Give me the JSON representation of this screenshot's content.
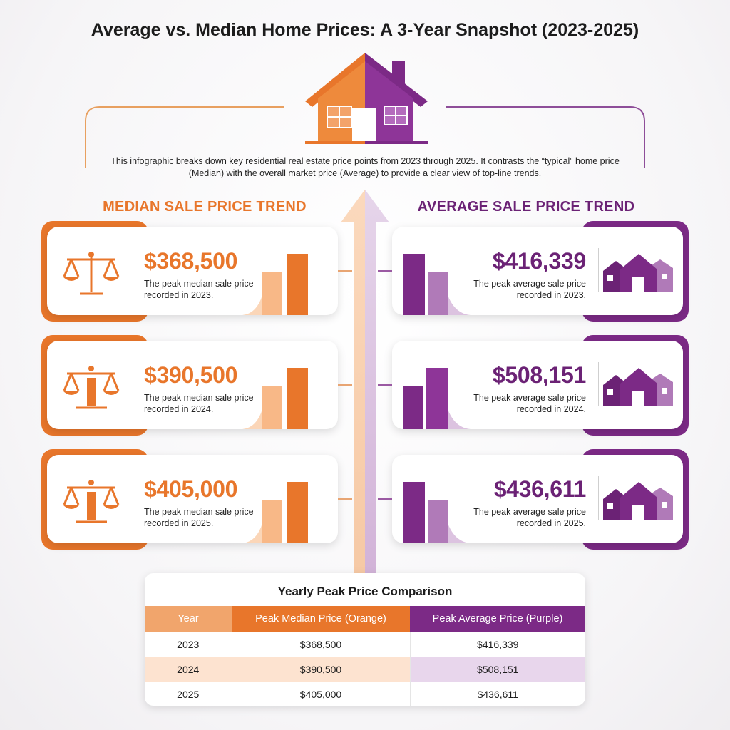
{
  "title": "Average vs. Median Home Prices: A 3-Year Snapshot (2023-2025)",
  "intro": "This infographic breaks down key residential real estate price points from 2023 through 2025. It contrasts the “typical” home price (Median) with the overall market price (Average) to provide a clear view of top-line trends.",
  "colors": {
    "median": "#e8762b",
    "average": "#7c2a86"
  },
  "median_section": {
    "title": "MEDIAN SALE PRICE TREND",
    "icon": "scales-icon",
    "cards": [
      {
        "year": "2023",
        "price": "$368,500",
        "desc": "The peak median sale price recorded in 2023."
      },
      {
        "year": "2024",
        "price": "$390,500",
        "desc": "The peak median sale price recorded in 2024."
      },
      {
        "year": "2025",
        "price": "$405,000",
        "desc": "The peak median sale price recorded in 2025."
      }
    ]
  },
  "average_section": {
    "title": "AVERAGE SALE PRICE TREND",
    "icon": "houses-icon",
    "cards": [
      {
        "year": "2023",
        "price": "$416,339",
        "desc": "The peak average sale price recorded in 2023."
      },
      {
        "year": "2024",
        "price": "$508,151",
        "desc": "The peak average sale price recorded in 2024."
      },
      {
        "year": "2025",
        "price": "$436,611",
        "desc": "The peak average sale price recorded in 2025."
      }
    ]
  },
  "table": {
    "title": "Yearly Peak Price Comparison",
    "headers": [
      "Year",
      "Peak Median Price (Orange)",
      "Peak Average Price (Purple)"
    ],
    "rows": [
      [
        "2023",
        "$368,500",
        "$416,339"
      ],
      [
        "2024",
        "$390,500",
        "$508,151"
      ],
      [
        "2025",
        "$405,000",
        "$436,611"
      ]
    ]
  },
  "chart_data": {
    "type": "table",
    "title": "Yearly Peak Price Comparison",
    "categories": [
      "2023",
      "2024",
      "2025"
    ],
    "series": [
      {
        "name": "Peak Median Price (Orange)",
        "values": [
          368500,
          390500,
          405000
        ]
      },
      {
        "name": "Peak Average Price (Purple)",
        "values": [
          416339,
          508151,
          436611
        ]
      }
    ]
  }
}
